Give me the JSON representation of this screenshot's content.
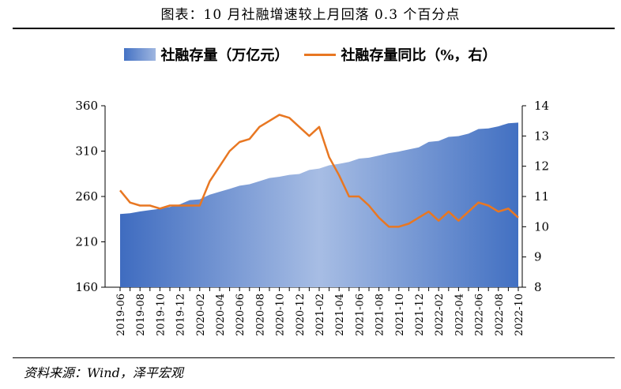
{
  "header": {
    "title": "图表：10 月社融增速较上月回落 0.3 个百分点"
  },
  "footer": {
    "source": "资料来源：Wind，泽平宏观"
  },
  "colors": {
    "area_dark": "#4472c4",
    "area_light": "#a8bde4",
    "line": "#e87722"
  },
  "chart_data": {
    "type": "area+line",
    "legend": [
      {
        "name": "社融存量（万亿元）",
        "kind": "area",
        "axis": "left"
      },
      {
        "name": "社融存量同比（%，右）",
        "kind": "line",
        "axis": "right"
      }
    ],
    "x": [
      "2019-06",
      "2019-07",
      "2019-08",
      "2019-09",
      "2019-10",
      "2019-11",
      "2019-12",
      "2020-01",
      "2020-02",
      "2020-03",
      "2020-04",
      "2020-05",
      "2020-06",
      "2020-07",
      "2020-08",
      "2020-09",
      "2020-10",
      "2020-11",
      "2020-12",
      "2021-01",
      "2021-02",
      "2021-03",
      "2021-04",
      "2021-05",
      "2021-06",
      "2021-07",
      "2021-08",
      "2021-09",
      "2021-10",
      "2021-11",
      "2021-12",
      "2022-01",
      "2022-02",
      "2022-03",
      "2022-04",
      "2022-05",
      "2022-06",
      "2022-07",
      "2022-08",
      "2022-09",
      "2022-10"
    ],
    "x_tick_labels": [
      "2019-06",
      "2019-08",
      "2019-10",
      "2019-12",
      "2020-02",
      "2020-04",
      "2020-06",
      "2020-08",
      "2020-10",
      "2020-12",
      "2021-02",
      "2021-04",
      "2021-06",
      "2021-08",
      "2021-10",
      "2021-12",
      "2022-02",
      "2022-04",
      "2022-06",
      "2022-08",
      "2022-10"
    ],
    "series": [
      {
        "name": "社融存量（万亿元）",
        "axis": "left",
        "values": [
          240.7,
          241.5,
          243.5,
          245.0,
          246.4,
          248.5,
          251.3,
          256.0,
          256.9,
          262.0,
          265.2,
          268.4,
          271.8,
          273.5,
          276.9,
          280.3,
          281.7,
          283.8,
          284.8,
          289.2,
          290.8,
          294.4,
          296.0,
          298.0,
          301.7,
          302.7,
          305.1,
          307.7,
          309.5,
          311.9,
          314.1,
          320.1,
          321.2,
          325.6,
          326.5,
          329.2,
          334.3,
          335.0,
          337.3,
          340.7,
          341.4
        ]
      },
      {
        "name": "社融存量同比（%，右）",
        "axis": "right",
        "values": [
          11.2,
          10.8,
          10.7,
          10.7,
          10.6,
          10.7,
          10.7,
          10.7,
          10.7,
          11.5,
          12.0,
          12.5,
          12.8,
          12.9,
          13.3,
          13.5,
          13.7,
          13.6,
          13.3,
          13.0,
          13.3,
          12.3,
          11.7,
          11.0,
          11.0,
          10.7,
          10.3,
          10.0,
          10.0,
          10.1,
          10.3,
          10.5,
          10.2,
          10.5,
          10.2,
          10.5,
          10.8,
          10.7,
          10.5,
          10.6,
          10.3
        ]
      }
    ],
    "y_left": {
      "min": 160,
      "max": 360,
      "ticks": [
        160,
        210,
        260,
        310,
        360
      ]
    },
    "y_right": {
      "min": 8,
      "max": 14,
      "ticks": [
        8,
        9,
        10,
        11,
        12,
        13,
        14
      ]
    }
  }
}
